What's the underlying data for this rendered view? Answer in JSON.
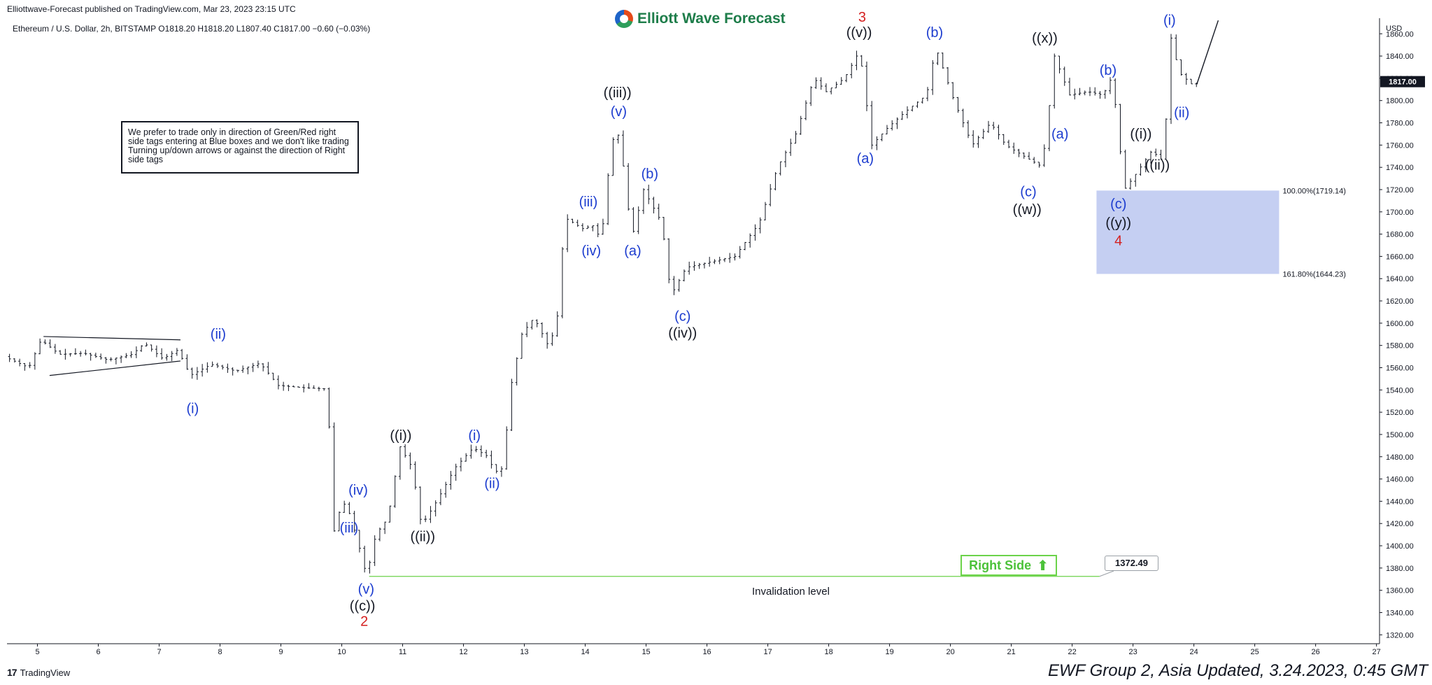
{
  "published_text": "Elliottwave-Forecast published on TradingView.com, Mar 23, 2023 23:15 UTC",
  "brand": {
    "name": "Elliott Wave Forecast",
    "logo_icon": "ewf-logo-icon"
  },
  "symbol_line": "Ethereum / U.S. Dollar, 2h, BITSTAMP  O1818.20  H1818.20  L1807.40  C1817.00  −0.60 (−0.03%)",
  "note_text": "We prefer to trade only in direction of Green/Red right side tags entering at Blue boxes and we don't like trading Turning up/down arrows or against the direction of Right side tags",
  "right_side_tag": {
    "label": "Right Side",
    "arrow": "up-arrow-icon",
    "color": "#4cc23a"
  },
  "invalidation": {
    "label": "Invalidation level",
    "value_label": "1372.49",
    "value": 1372.49
  },
  "footer_text": "EWF Group 2, Asia Updated, 3.24.2023, 0:45 GMT",
  "tradingview_label": "TradingView",
  "colors": {
    "blue_label": "#1c3ccf",
    "red_label": "#d41f1f",
    "box": "#c5cff2",
    "bars": "#131722",
    "green": "#6cd34a"
  },
  "chart_data": {
    "type": "ohlc",
    "title": "Ethereum / U.S. Dollar, 2h, BITSTAMP",
    "currency_label": "USD",
    "last_price_label": "1817.00",
    "ylim": [
      1312,
      1874
    ],
    "yticks": [
      1320,
      1340,
      1360,
      1380,
      1400,
      1420,
      1440,
      1460,
      1480,
      1500,
      1520,
      1540,
      1560,
      1580,
      1600,
      1620,
      1640,
      1660,
      1680,
      1700,
      1720,
      1740,
      1760,
      1780,
      1800,
      1820,
      1840,
      1860
    ],
    "xlim": [
      4.5,
      27.05
    ],
    "xticks": [
      5,
      6,
      7,
      8,
      9,
      10,
      11,
      12,
      13,
      14,
      15,
      16,
      17,
      18,
      19,
      20,
      21,
      22,
      23,
      24,
      25,
      26,
      27
    ],
    "fib_box": {
      "x_start": 22.4,
      "x_end": 25.4,
      "top": 1719.14,
      "bottom": 1644.23,
      "top_label": "100.00%(1719.14)",
      "bottom_label": "161.80%(1644.23)"
    },
    "price_path": [
      [
        4.5,
        1570
      ],
      [
        4.9,
        1560
      ],
      [
        5.1,
        1585
      ],
      [
        5.4,
        1572
      ],
      [
        5.8,
        1573
      ],
      [
        6.2,
        1567
      ],
      [
        6.6,
        1572
      ],
      [
        6.8,
        1582
      ],
      [
        7.1,
        1568
      ],
      [
        7.35,
        1576
      ],
      [
        7.55,
        1553
      ],
      [
        7.9,
        1563
      ],
      [
        8.3,
        1557
      ],
      [
        8.7,
        1564
      ],
      [
        9.0,
        1544
      ],
      [
        9.4,
        1542
      ],
      [
        9.75,
        1541
      ],
      [
        9.85,
        1500
      ],
      [
        9.9,
        1410
      ],
      [
        10.05,
        1440
      ],
      [
        10.15,
        1432
      ],
      [
        10.3,
        1405
      ],
      [
        10.45,
        1372.5
      ],
      [
        10.6,
        1410
      ],
      [
        10.8,
        1425
      ],
      [
        11.0,
        1489
      ],
      [
        11.2,
        1470
      ],
      [
        11.35,
        1418
      ],
      [
        11.6,
        1440
      ],
      [
        11.9,
        1470
      ],
      [
        12.2,
        1488
      ],
      [
        12.45,
        1480
      ],
      [
        12.55,
        1466
      ],
      [
        12.7,
        1470
      ],
      [
        12.8,
        1538
      ],
      [
        13.0,
        1590
      ],
      [
        13.2,
        1605
      ],
      [
        13.45,
        1578
      ],
      [
        13.6,
        1610
      ],
      [
        13.7,
        1695
      ],
      [
        14.0,
        1685
      ],
      [
        14.2,
        1688
      ],
      [
        14.3,
        1672
      ],
      [
        14.45,
        1750
      ],
      [
        14.55,
        1780
      ],
      [
        14.7,
        1730
      ],
      [
        14.8,
        1675
      ],
      [
        15.0,
        1720
      ],
      [
        15.3,
        1690
      ],
      [
        15.45,
        1625
      ],
      [
        15.7,
        1650
      ],
      [
        16.1,
        1655
      ],
      [
        16.5,
        1660
      ],
      [
        16.9,
        1690
      ],
      [
        17.2,
        1740
      ],
      [
        17.5,
        1770
      ],
      [
        17.8,
        1820
      ],
      [
        18.0,
        1808
      ],
      [
        18.3,
        1820
      ],
      [
        18.55,
        1845
      ],
      [
        18.75,
        1760
      ],
      [
        19.0,
        1775
      ],
      [
        19.3,
        1790
      ],
      [
        19.65,
        1805
      ],
      [
        19.8,
        1848
      ],
      [
        20.1,
        1800
      ],
      [
        20.4,
        1760
      ],
      [
        20.7,
        1780
      ],
      [
        20.95,
        1760
      ],
      [
        21.25,
        1750
      ],
      [
        21.5,
        1742
      ],
      [
        21.6,
        1760
      ],
      [
        21.75,
        1840
      ],
      [
        22.0,
        1805
      ],
      [
        22.3,
        1808
      ],
      [
        22.55,
        1805
      ],
      [
        22.7,
        1822
      ],
      [
        22.9,
        1720
      ],
      [
        23.1,
        1735
      ],
      [
        23.35,
        1755
      ],
      [
        23.55,
        1745
      ],
      [
        23.65,
        1860
      ],
      [
        23.8,
        1825
      ],
      [
        24.0,
        1815
      ]
    ],
    "triangle": {
      "upper": [
        [
          5.1,
          1588
        ],
        [
          7.35,
          1585
        ]
      ],
      "lower": [
        [
          5.2,
          1553
        ],
        [
          7.35,
          1566
        ]
      ]
    },
    "projection": [
      [
        24.05,
        1815
      ],
      [
        24.4,
        1872
      ]
    ],
    "invalidation_line": {
      "from": 10.45,
      "to": 22.45,
      "value": 1372.49
    },
    "wave_labels": [
      {
        "text": "(i)",
        "x": 7.55,
        "y": 1519,
        "color": "blue"
      },
      {
        "text": "(ii)",
        "x": 7.97,
        "y": 1586,
        "color": "blue"
      },
      {
        "text": "(iii)",
        "x": 10.12,
        "y": 1412,
        "color": "blue"
      },
      {
        "text": "(iv)",
        "x": 10.27,
        "y": 1446,
        "color": "blue"
      },
      {
        "text": "(v)",
        "x": 10.4,
        "y": 1357,
        "color": "blue"
      },
      {
        "text": "((c))",
        "x": 10.34,
        "y": 1342,
        "color": "black"
      },
      {
        "text": "2",
        "x": 10.37,
        "y": 1328,
        "color": "red"
      },
      {
        "text": "((i))",
        "x": 10.97,
        "y": 1495,
        "color": "black"
      },
      {
        "text": "((ii))",
        "x": 11.33,
        "y": 1404,
        "color": "black"
      },
      {
        "text": "(i)",
        "x": 12.18,
        "y": 1495,
        "color": "blue"
      },
      {
        "text": "(ii)",
        "x": 12.47,
        "y": 1452,
        "color": "blue"
      },
      {
        "text": "(iii)",
        "x": 14.05,
        "y": 1705,
        "color": "blue"
      },
      {
        "text": "(iv)",
        "x": 14.1,
        "y": 1661,
        "color": "blue"
      },
      {
        "text": "((iii))",
        "x": 14.53,
        "y": 1803,
        "color": "black"
      },
      {
        "text": "(v)",
        "x": 14.55,
        "y": 1786,
        "color": "blue"
      },
      {
        "text": "(b)",
        "x": 15.06,
        "y": 1730,
        "color": "blue"
      },
      {
        "text": "(a)",
        "x": 14.78,
        "y": 1661,
        "color": "blue"
      },
      {
        "text": "(c)",
        "x": 15.6,
        "y": 1602,
        "color": "blue"
      },
      {
        "text": "((iv))",
        "x": 15.6,
        "y": 1587,
        "color": "black"
      },
      {
        "text": "3",
        "x": 18.55,
        "y": 1871,
        "color": "red"
      },
      {
        "text": "((v))",
        "x": 18.5,
        "y": 1857,
        "color": "black"
      },
      {
        "text": "(a)",
        "x": 18.6,
        "y": 1744,
        "color": "blue"
      },
      {
        "text": "(b)",
        "x": 19.74,
        "y": 1857,
        "color": "blue"
      },
      {
        "text": "((x))",
        "x": 21.55,
        "y": 1852,
        "color": "black"
      },
      {
        "text": "(a)",
        "x": 21.8,
        "y": 1766,
        "color": "blue"
      },
      {
        "text": "(c)",
        "x": 21.28,
        "y": 1714,
        "color": "blue"
      },
      {
        "text": "((w))",
        "x": 21.26,
        "y": 1698,
        "color": "black"
      },
      {
        "text": "(b)",
        "x": 22.59,
        "y": 1823,
        "color": "blue"
      },
      {
        "text": "(c)",
        "x": 22.76,
        "y": 1703,
        "color": "blue"
      },
      {
        "text": "((y))",
        "x": 22.76,
        "y": 1686,
        "color": "black"
      },
      {
        "text": "4",
        "x": 22.76,
        "y": 1670,
        "color": "red"
      },
      {
        "text": "((i))",
        "x": 23.13,
        "y": 1766,
        "color": "black"
      },
      {
        "text": "((ii))",
        "x": 23.4,
        "y": 1738,
        "color": "black"
      },
      {
        "text": "(i)",
        "x": 23.6,
        "y": 1868,
        "color": "blue"
      },
      {
        "text": "(ii)",
        "x": 23.8,
        "y": 1785,
        "color": "blue"
      }
    ]
  }
}
